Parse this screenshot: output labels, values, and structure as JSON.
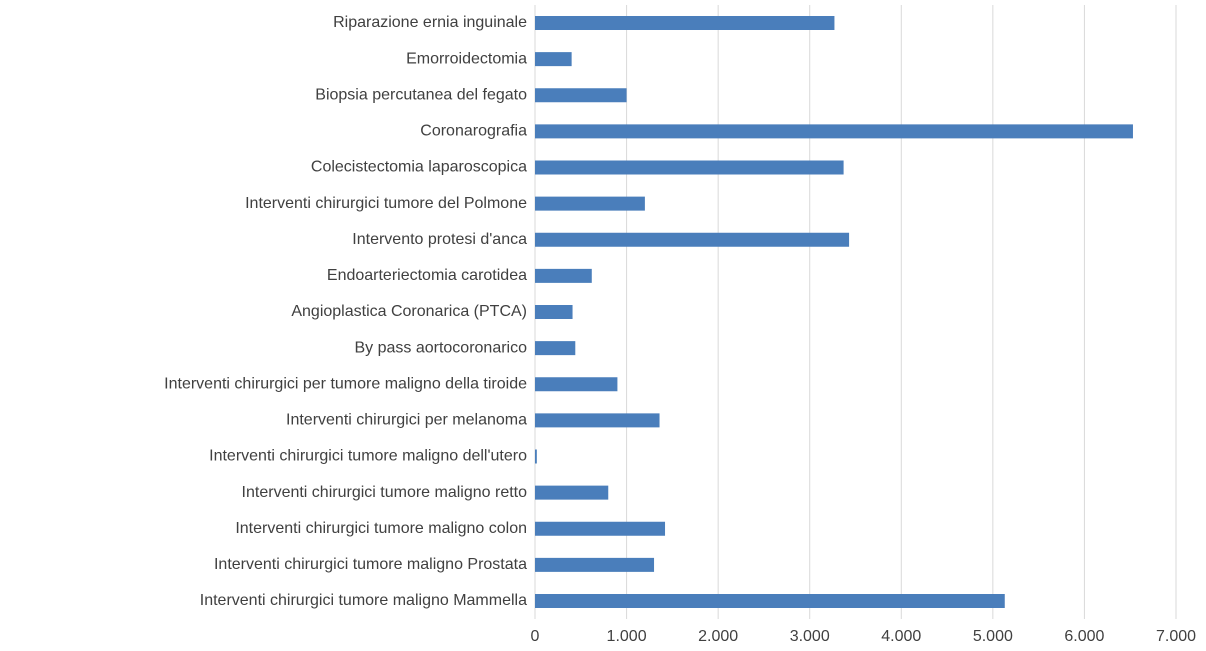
{
  "chart_data": {
    "type": "bar",
    "orientation": "horizontal",
    "categories": [
      "Riparazione ernia inguinale",
      "Emorroidectomia",
      "Biopsia percutanea del fegato",
      "Coronarografia",
      "Colecistectomia laparoscopica",
      "Interventi chirurgici tumore del Polmone",
      "Intervento protesi d'anca",
      "Endoarteriectomia carotidea",
      "Angioplastica Coronarica (PTCA)",
      "By pass aortocoronarico",
      "Interventi chirurgici per tumore maligno della tiroide",
      "Interventi chirurgici per melanoma",
      "Interventi chirurgici tumore maligno dell'utero",
      "Interventi chirurgici tumore maligno retto",
      "Interventi chirurgici tumore maligno colon",
      "Interventi chirurgici tumore maligno Prostata",
      "Interventi chirurgici tumore maligno Mammella"
    ],
    "values": [
      3270,
      400,
      1000,
      6530,
      3370,
      1200,
      3430,
      620,
      410,
      440,
      900,
      1360,
      20,
      800,
      1420,
      1300,
      5130
    ],
    "color": "#4a7ebb",
    "xlim": [
      0,
      7000
    ],
    "xticks": [
      0,
      {
        "value": 1000,
        "label": "1.000"
      },
      {
        "value": 2000,
        "label": "2.000"
      },
      {
        "value": 3000,
        "label": "3.000"
      },
      {
        "value": 4000,
        "label": "4.000"
      },
      {
        "value": 5000,
        "label": "5.000"
      },
      {
        "value": 6000,
        "label": "6.000"
      },
      {
        "value": 7000,
        "label": "7.000"
      }
    ],
    "grid": true
  }
}
